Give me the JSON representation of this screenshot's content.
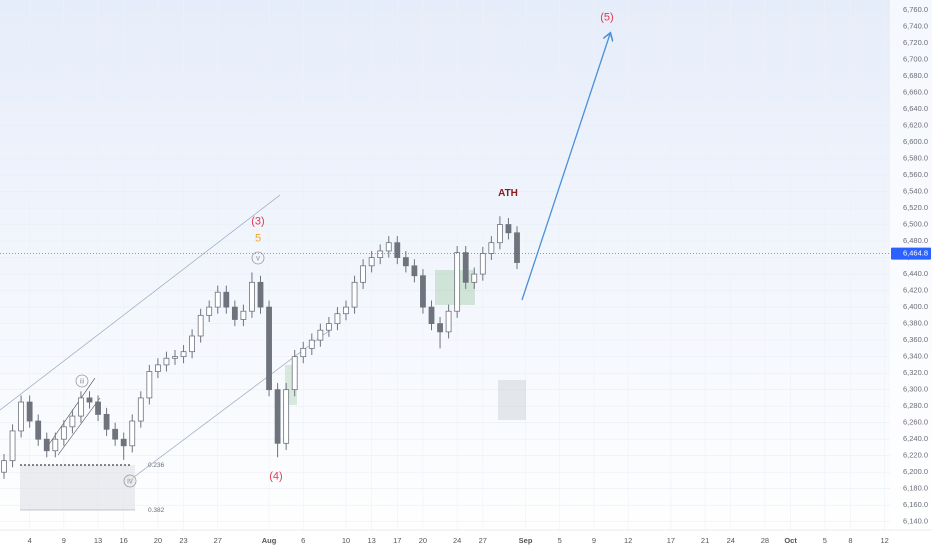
{
  "chart_data": {
    "type": "candlestick",
    "categories": [
      null,
      null,
      null,
      "4",
      null,
      null,
      null,
      "9",
      null,
      null,
      null,
      "13",
      null,
      null,
      "16",
      null,
      null,
      null,
      "20",
      null,
      null,
      "23",
      null,
      null,
      null,
      "27",
      null,
      null,
      null,
      null,
      null,
      "Aug",
      null,
      null,
      null,
      "6",
      null,
      null,
      null,
      null,
      "10",
      null,
      null,
      "13",
      null,
      null,
      "17",
      null,
      null,
      "20",
      null,
      null,
      null,
      "24",
      null,
      null,
      "27",
      null,
      null,
      null,
      null,
      "Sep",
      null,
      null,
      null,
      "5",
      null,
      null,
      null,
      "9",
      null,
      null,
      null,
      "12",
      null,
      null,
      null,
      null,
      "17",
      null,
      null,
      null,
      "21",
      null,
      null,
      "24",
      null,
      null,
      null,
      "28",
      null,
      null,
      "Oct",
      null,
      null,
      null,
      "5",
      null,
      null,
      "8",
      null,
      null,
      null,
      "12"
    ],
    "open": [
      6200,
      6214,
      6250,
      6285,
      6262,
      6240,
      6226,
      6240,
      6255,
      6268,
      6290,
      6285,
      6270,
      6252,
      6240,
      6232,
      6262,
      6290,
      6322,
      6330,
      6338,
      6340,
      6346,
      6365,
      6390,
      6400,
      6418,
      6400,
      6385,
      6395,
      6430,
      6400,
      6300,
      6235,
      6300,
      6340,
      6350,
      6360,
      6372,
      6380,
      6392,
      6400,
      6430,
      6450,
      6460,
      6468,
      6478,
      6460,
      6450,
      6438,
      6400,
      6380,
      6370,
      6395,
      6466,
      6430,
      6440,
      6465,
      6478,
      6500,
      6490,
      null,
      null,
      null,
      null,
      null,
      null,
      null,
      null,
      null,
      null,
      null,
      null,
      null,
      null,
      null,
      null,
      null,
      null,
      null,
      null,
      null,
      null,
      null,
      null,
      null,
      null,
      null,
      null,
      null,
      null,
      null,
      null,
      null,
      null,
      null,
      null,
      null,
      null,
      null,
      null,
      null,
      null,
      null
    ],
    "high": [
      6222,
      6258,
      6293,
      6293,
      6270,
      6248,
      6248,
      6263,
      6276,
      6298,
      6298,
      6293,
      6278,
      6260,
      6248,
      6270,
      6298,
      6330,
      6338,
      6346,
      6348,
      6354,
      6373,
      6398,
      6408,
      6426,
      6426,
      6408,
      6403,
      6442,
      6438,
      6408,
      6308,
      6308,
      6348,
      6358,
      6368,
      6380,
      6388,
      6400,
      6408,
      6438,
      6458,
      6468,
      6476,
      6486,
      6486,
      6468,
      6458,
      6446,
      6408,
      6388,
      6403,
      6474,
      6474,
      6448,
      6473,
      6486,
      6510,
      6508,
      6498,
      null,
      null,
      null,
      null,
      null,
      null,
      null,
      null,
      null,
      null,
      null,
      null,
      null,
      null,
      null,
      null,
      null,
      null,
      null,
      null,
      null,
      null,
      null,
      null,
      null,
      null,
      null,
      null,
      null,
      null,
      null,
      null,
      null,
      null,
      null,
      null,
      null,
      null,
      null,
      null,
      null,
      null,
      null
    ],
    "low": [
      6192,
      6206,
      6242,
      6254,
      6232,
      6218,
      6218,
      6232,
      6247,
      6260,
      6277,
      6262,
      6244,
      6232,
      6215,
      6224,
      6254,
      6282,
      6314,
      6322,
      6330,
      6332,
      6338,
      6357,
      6382,
      6392,
      6392,
      6377,
      6377,
      6387,
      6392,
      6292,
      6218,
      6227,
      6292,
      6332,
      6342,
      6352,
      6364,
      6372,
      6384,
      6392,
      6422,
      6442,
      6452,
      6460,
      6452,
      6442,
      6430,
      6392,
      6372,
      6350,
      6362,
      6387,
      6422,
      6422,
      6432,
      6457,
      6470,
      6482,
      6446,
      null,
      null,
      null,
      null,
      null,
      null,
      null,
      null,
      null,
      null,
      null,
      null,
      null,
      null,
      null,
      null,
      null,
      null,
      null,
      null,
      null,
      null,
      null,
      null,
      null,
      null,
      null,
      null,
      null,
      null,
      null,
      null,
      null,
      null,
      null,
      null,
      null,
      null,
      null,
      null,
      null,
      null,
      null
    ],
    "close": [
      6214,
      6250,
      6285,
      6262,
      6240,
      6226,
      6240,
      6255,
      6268,
      6290,
      6285,
      6270,
      6252,
      6240,
      6232,
      6262,
      6290,
      6322,
      6330,
      6338,
      6340,
      6346,
      6365,
      6390,
      6400,
      6418,
      6400,
      6385,
      6395,
      6430,
      6400,
      6300,
      6235,
      6300,
      6340,
      6350,
      6360,
      6372,
      6380,
      6392,
      6400,
      6430,
      6450,
      6460,
      6468,
      6478,
      6460,
      6450,
      6438,
      6400,
      6380,
      6370,
      6395,
      6466,
      6430,
      6440,
      6465,
      6478,
      6500,
      6490,
      6454,
      null,
      null,
      null,
      null,
      null,
      null,
      null,
      null,
      null,
      null,
      null,
      null,
      null,
      null,
      null,
      null,
      null,
      null,
      null,
      null,
      null,
      null,
      null,
      null,
      null,
      null,
      null,
      null,
      null,
      null,
      null,
      null,
      null,
      null,
      null,
      null,
      null,
      null,
      null,
      null,
      null,
      null,
      null
    ],
    "color": "#6f737d",
    "ylim": [
      6130,
      6772
    ],
    "yticks": [
      {
        "value": 6140,
        "label": "6,140.0"
      },
      {
        "value": 6160,
        "label": "6,160.0"
      },
      {
        "value": 6180,
        "label": "6,180.0"
      },
      {
        "value": 6200,
        "label": "6,200.0"
      },
      {
        "value": 6220,
        "label": "6,220.0"
      },
      {
        "value": 6240,
        "label": "6,240.0"
      },
      {
        "value": 6260,
        "label": "6,260.0"
      },
      {
        "value": 6280,
        "label": "6,280.0"
      },
      {
        "value": 6300,
        "label": "6,300.0"
      },
      {
        "value": 6320,
        "label": "6,320.0"
      },
      {
        "value": 6340,
        "label": "6,340.0"
      },
      {
        "value": 6360,
        "label": "6,360.0"
      },
      {
        "value": 6380,
        "label": "6,380.0"
      },
      {
        "value": 6400,
        "label": "6,400.0"
      },
      {
        "value": 6420,
        "label": "6,420.0"
      },
      {
        "value": 6440,
        "label": "6,440.0"
      },
      {
        "value": 6460,
        "label": "6,460.0"
      },
      {
        "value": 6480,
        "label": "6,480.0"
      },
      {
        "value": 6500,
        "label": "6,500.0"
      },
      {
        "value": 6520,
        "label": "6,520.0"
      },
      {
        "value": 6540,
        "label": "6,540.0"
      },
      {
        "value": 6560,
        "label": "6,560.0"
      },
      {
        "value": 6580,
        "label": "6,580.0"
      },
      {
        "value": 6600,
        "label": "6,600.0"
      },
      {
        "value": 6620,
        "label": "6,620.0"
      },
      {
        "value": 6640,
        "label": "6,640.0"
      },
      {
        "value": 6660,
        "label": "6,660.0"
      },
      {
        "value": 6680,
        "label": "6,680.0"
      },
      {
        "value": 6700,
        "label": "6,700.0"
      },
      {
        "value": 6720,
        "label": "6,720.0"
      },
      {
        "value": 6740,
        "label": "6,740.0"
      },
      {
        "value": 6760,
        "label": "6,760.0"
      }
    ],
    "current_price": {
      "value": 6464.8,
      "label": "6,464.8"
    },
    "grid": true,
    "annotations": [
      {
        "text": "(3)"
      },
      {
        "text": "5"
      },
      {
        "text": "v"
      },
      {
        "text": "(4)"
      },
      {
        "text": "(5)"
      },
      {
        "text": "ATH"
      },
      {
        "text": "iii"
      },
      {
        "text": "iv"
      },
      {
        "text": "0.236"
      },
      {
        "text": "0.382"
      }
    ]
  }
}
